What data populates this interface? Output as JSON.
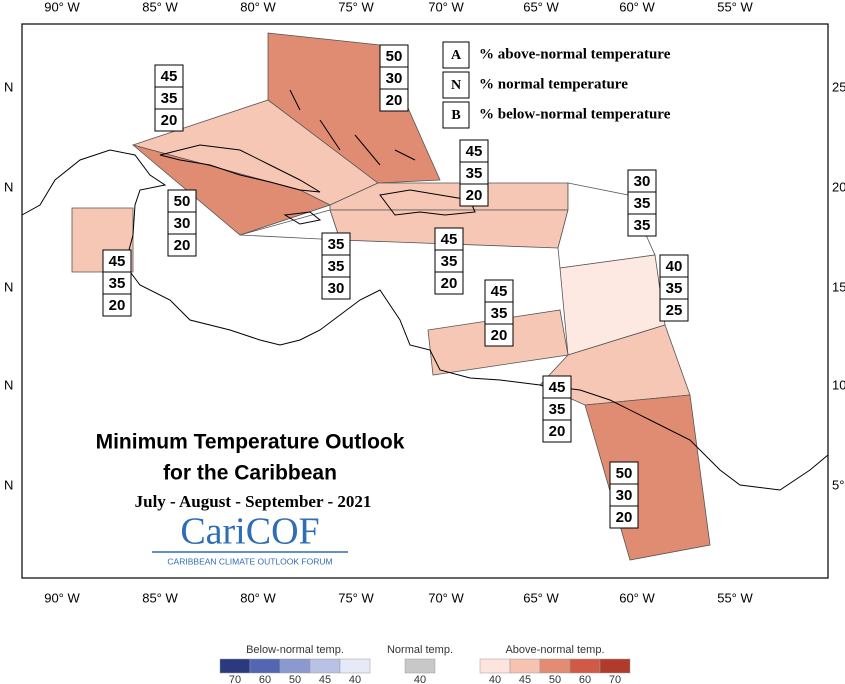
{
  "map": {
    "title_lines": [
      "Minimum Temperature Outlook",
      "for the Caribbean"
    ],
    "period": "July - August - September - 2021",
    "logo": {
      "name": "CariCOF",
      "tagline": "CARIBBEAN CLIMATE OUTLOOK FORUM"
    },
    "lon_labels": [
      "90° W",
      "85° W",
      "80° W",
      "75° W",
      "70° W",
      "65° W",
      "60° W",
      "55° W"
    ],
    "lat_labels_left": [
      "N",
      "N",
      "N",
      "N",
      "N"
    ],
    "lat_labels_right": [
      "25°",
      "20°",
      "15°",
      "10°",
      "5°"
    ],
    "key": [
      {
        "letter": "A",
        "text": "% above-normal temperature"
      },
      {
        "letter": "N",
        "text": "% normal temperature"
      },
      {
        "letter": "B",
        "text": "% below-normal temperature"
      }
    ],
    "regions": [
      {
        "values": [
          50,
          30,
          20
        ],
        "color": "#e08c73"
      },
      {
        "values": [
          45,
          35,
          20
        ],
        "color": "#f7c7b6"
      },
      {
        "values": [
          50,
          30,
          20
        ],
        "color": "#e08c73"
      },
      {
        "values": [
          45,
          35,
          20
        ],
        "color": "#f7c7b6"
      },
      {
        "values": [
          45,
          35,
          20
        ],
        "color": "#f7c7b6"
      },
      {
        "values": [
          45,
          35,
          20
        ],
        "color": "#f7c7b6"
      },
      {
        "values": [
          35,
          35,
          30
        ],
        "color": "#ffffff"
      },
      {
        "values": [
          30,
          35,
          35
        ],
        "color": "#ffffff"
      },
      {
        "values": [
          40,
          35,
          25
        ],
        "color": "#fde9e2"
      },
      {
        "values": [
          45,
          35,
          20
        ],
        "color": "#f7c7b6"
      },
      {
        "values": [
          45,
          35,
          20
        ],
        "color": "#f7c7b6"
      },
      {
        "values": [
          50,
          30,
          20
        ],
        "color": "#e08c73"
      }
    ]
  },
  "legend": {
    "groups": [
      {
        "title": "Below-normal temp.",
        "swatches": [
          {
            "label": "70",
            "color": "#2b3a7f"
          },
          {
            "label": "60",
            "color": "#5266b2"
          },
          {
            "label": "50",
            "color": "#8a99d0"
          },
          {
            "label": "45",
            "color": "#b9c2e6"
          },
          {
            "label": "40",
            "color": "#e6eaf8"
          }
        ]
      },
      {
        "title": "Normal temp.",
        "swatches": [
          {
            "label": "40",
            "color": "#c8c8c8"
          }
        ]
      },
      {
        "title": "Above-normal temp.",
        "swatches": [
          {
            "label": "40",
            "color": "#fde5dd"
          },
          {
            "label": "45",
            "color": "#f6c3b1"
          },
          {
            "label": "50",
            "color": "#e38c73"
          },
          {
            "label": "60",
            "color": "#d05a45"
          },
          {
            "label": "70",
            "color": "#b03a2b"
          }
        ]
      }
    ]
  }
}
